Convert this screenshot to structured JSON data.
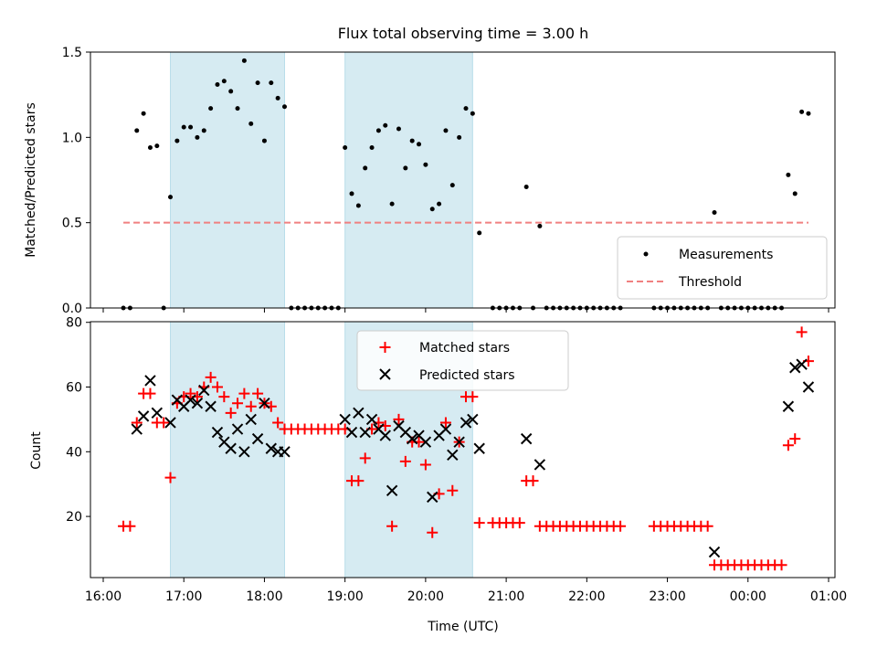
{
  "chart_data": [
    {
      "type": "scatter",
      "title": "Flux total observing time = 3.00 h",
      "xlabel": "",
      "ylabel": "Matched/Predicted stars",
      "xlim": [
        "16:00",
        "01:00"
      ],
      "ylim": [
        0,
        1.5
      ],
      "yticks": [
        "0.0",
        "0.5",
        "1.0",
        "1.5"
      ],
      "shaded_intervals": [
        [
          "16:50",
          "18:15"
        ],
        [
          "19:00",
          "20:35"
        ]
      ],
      "legend_position": "lower-right",
      "series": [
        {
          "name": "Measurements",
          "marker": "dot",
          "color": "#000000",
          "points": [
            [
              "16:15",
              0
            ],
            [
              "16:20",
              0
            ],
            [
              "16:25",
              1.04
            ],
            [
              "16:30",
              1.14
            ],
            [
              "16:35",
              0.94
            ],
            [
              "16:40",
              0.95
            ],
            [
              "16:45",
              0
            ],
            [
              "16:50",
              0.65
            ],
            [
              "16:55",
              0.98
            ],
            [
              "17:00",
              1.06
            ],
            [
              "17:05",
              1.06
            ],
            [
              "17:10",
              1.0
            ],
            [
              "17:15",
              1.04
            ],
            [
              "17:20",
              1.17
            ],
            [
              "17:25",
              1.31
            ],
            [
              "17:30",
              1.33
            ],
            [
              "17:35",
              1.27
            ],
            [
              "17:40",
              1.17
            ],
            [
              "17:45",
              1.45
            ],
            [
              "17:50",
              1.08
            ],
            [
              "17:55",
              1.32
            ],
            [
              "18:00",
              0.98
            ],
            [
              "18:05",
              1.32
            ],
            [
              "18:10",
              1.23
            ],
            [
              "18:15",
              1.18
            ],
            [
              "18:20",
              0
            ],
            [
              "18:25",
              0
            ],
            [
              "18:30",
              0
            ],
            [
              "18:35",
              0
            ],
            [
              "18:40",
              0
            ],
            [
              "18:45",
              0
            ],
            [
              "18:50",
              0
            ],
            [
              "18:55",
              0
            ],
            [
              "19:00",
              0.94
            ],
            [
              "19:05",
              0.67
            ],
            [
              "19:10",
              0.6
            ],
            [
              "19:15",
              0.82
            ],
            [
              "19:20",
              0.94
            ],
            [
              "19:25",
              1.04
            ],
            [
              "19:30",
              1.07
            ],
            [
              "19:35",
              0.61
            ],
            [
              "19:40",
              1.05
            ],
            [
              "19:45",
              0.82
            ],
            [
              "19:50",
              0.98
            ],
            [
              "19:55",
              0.96
            ],
            [
              "20:00",
              0.84
            ],
            [
              "20:05",
              0.58
            ],
            [
              "20:10",
              0.61
            ],
            [
              "20:15",
              1.04
            ],
            [
              "20:20",
              0.72
            ],
            [
              "20:25",
              1.0
            ],
            [
              "20:30",
              1.17
            ],
            [
              "20:35",
              1.14
            ],
            [
              "20:40",
              0.44
            ],
            [
              "20:50",
              0
            ],
            [
              "20:55",
              0
            ],
            [
              "21:00",
              0
            ],
            [
              "21:05",
              0
            ],
            [
              "21:10",
              0
            ],
            [
              "21:15",
              0.71
            ],
            [
              "21:20",
              0
            ],
            [
              "21:25",
              0.48
            ],
            [
              "21:30",
              0
            ],
            [
              "21:35",
              0
            ],
            [
              "21:40",
              0
            ],
            [
              "21:45",
              0
            ],
            [
              "21:50",
              0
            ],
            [
              "21:55",
              0
            ],
            [
              "22:00",
              0
            ],
            [
              "22:05",
              0
            ],
            [
              "22:10",
              0
            ],
            [
              "22:15",
              0
            ],
            [
              "22:20",
              0
            ],
            [
              "22:25",
              0
            ],
            [
              "22:50",
              0
            ],
            [
              "22:55",
              0
            ],
            [
              "23:00",
              0
            ],
            [
              "23:05",
              0
            ],
            [
              "23:10",
              0
            ],
            [
              "23:15",
              0
            ],
            [
              "23:20",
              0
            ],
            [
              "23:25",
              0
            ],
            [
              "23:30",
              0
            ],
            [
              "23:35",
              0.56
            ],
            [
              "23:40",
              0
            ],
            [
              "23:45",
              0
            ],
            [
              "23:50",
              0
            ],
            [
              "23:55",
              0
            ],
            [
              "00:00",
              0
            ],
            [
              "00:05",
              0
            ],
            [
              "00:10",
              0
            ],
            [
              "00:15",
              0
            ],
            [
              "00:20",
              0
            ],
            [
              "00:25",
              0
            ],
            [
              "00:30",
              0.78
            ],
            [
              "00:35",
              0.67
            ],
            [
              "00:40",
              1.15
            ],
            [
              "00:45",
              1.14
            ]
          ]
        },
        {
          "name": "Threshold",
          "marker": "dashed-line",
          "color": "#f08080",
          "points": [
            [
              "16:15",
              0.5
            ],
            [
              "00:45",
              0.5
            ]
          ]
        }
      ]
    },
    {
      "type": "scatter",
      "title": "",
      "xlabel": "Time (UTC)",
      "ylabel": "Count",
      "xlim": [
        "16:00",
        "01:00"
      ],
      "ylim": [
        1,
        80
      ],
      "yticks": [
        "20",
        "40",
        "60",
        "80"
      ],
      "xticks": [
        "16:00",
        "17:00",
        "18:00",
        "19:00",
        "20:00",
        "21:00",
        "22:00",
        "23:00",
        "00:00",
        "01:00"
      ],
      "shaded_intervals": [
        [
          "16:50",
          "18:15"
        ],
        [
          "19:00",
          "20:35"
        ]
      ],
      "legend_position": "upper-center",
      "series": [
        {
          "name": "Matched stars",
          "marker": "plus",
          "color": "#ff0000",
          "points": [
            [
              "16:15",
              17
            ],
            [
              "16:20",
              17
            ],
            [
              "16:25",
              49
            ],
            [
              "16:30",
              58
            ],
            [
              "16:35",
              58
            ],
            [
              "16:40",
              49
            ],
            [
              "16:45",
              49
            ],
            [
              "16:50",
              32
            ],
            [
              "16:55",
              55
            ],
            [
              "17:00",
              57
            ],
            [
              "17:05",
              58
            ],
            [
              "17:10",
              57
            ],
            [
              "17:15",
              60
            ],
            [
              "17:20",
              63
            ],
            [
              "17:25",
              60
            ],
            [
              "17:30",
              57
            ],
            [
              "17:35",
              52
            ],
            [
              "17:40",
              55
            ],
            [
              "17:45",
              58
            ],
            [
              "17:50",
              54
            ],
            [
              "17:55",
              58
            ],
            [
              "18:00",
              55
            ],
            [
              "18:05",
              54
            ],
            [
              "18:10",
              49
            ],
            [
              "18:15",
              47
            ],
            [
              "18:20",
              47
            ],
            [
              "18:25",
              47
            ],
            [
              "18:30",
              47
            ],
            [
              "18:35",
              47
            ],
            [
              "18:40",
              47
            ],
            [
              "18:45",
              47
            ],
            [
              "18:50",
              47
            ],
            [
              "18:55",
              47
            ],
            [
              "19:00",
              47
            ],
            [
              "19:05",
              31
            ],
            [
              "19:10",
              31
            ],
            [
              "19:15",
              38
            ],
            [
              "19:20",
              47
            ],
            [
              "19:25",
              49
            ],
            [
              "19:30",
              48
            ],
            [
              "19:35",
              17
            ],
            [
              "19:40",
              50
            ],
            [
              "19:45",
              37
            ],
            [
              "19:50",
              43
            ],
            [
              "19:55",
              43
            ],
            [
              "20:00",
              36
            ],
            [
              "20:05",
              15
            ],
            [
              "20:10",
              27
            ],
            [
              "20:15",
              49
            ],
            [
              "20:20",
              28
            ],
            [
              "20:25",
              43
            ],
            [
              "20:30",
              57
            ],
            [
              "20:35",
              57
            ],
            [
              "20:40",
              18
            ],
            [
              "20:50",
              18
            ],
            [
              "20:55",
              18
            ],
            [
              "21:00",
              18
            ],
            [
              "21:05",
              18
            ],
            [
              "21:10",
              18
            ],
            [
              "21:15",
              31
            ],
            [
              "21:20",
              31
            ],
            [
              "21:25",
              17
            ],
            [
              "21:30",
              17
            ],
            [
              "21:35",
              17
            ],
            [
              "21:40",
              17
            ],
            [
              "21:45",
              17
            ],
            [
              "21:50",
              17
            ],
            [
              "21:55",
              17
            ],
            [
              "22:00",
              17
            ],
            [
              "22:05",
              17
            ],
            [
              "22:10",
              17
            ],
            [
              "22:15",
              17
            ],
            [
              "22:20",
              17
            ],
            [
              "22:25",
              17
            ],
            [
              "22:50",
              17
            ],
            [
              "22:55",
              17
            ],
            [
              "23:00",
              17
            ],
            [
              "23:05",
              17
            ],
            [
              "23:10",
              17
            ],
            [
              "23:15",
              17
            ],
            [
              "23:20",
              17
            ],
            [
              "23:25",
              17
            ],
            [
              "23:30",
              17
            ],
            [
              "23:35",
              5
            ],
            [
              "23:40",
              5
            ],
            [
              "23:45",
              5
            ],
            [
              "23:50",
              5
            ],
            [
              "23:55",
              5
            ],
            [
              "00:00",
              5
            ],
            [
              "00:05",
              5
            ],
            [
              "00:10",
              5
            ],
            [
              "00:15",
              5
            ],
            [
              "00:20",
              5
            ],
            [
              "00:25",
              5
            ],
            [
              "00:30",
              42
            ],
            [
              "00:35",
              44
            ],
            [
              "00:40",
              77
            ],
            [
              "00:45",
              68
            ]
          ]
        },
        {
          "name": "Predicted stars",
          "marker": "x",
          "color": "#000000",
          "points": [
            [
              "16:25",
              47
            ],
            [
              "16:30",
              51
            ],
            [
              "16:35",
              62
            ],
            [
              "16:40",
              52
            ],
            [
              "16:50",
              49
            ],
            [
              "16:55",
              56
            ],
            [
              "17:00",
              54
            ],
            [
              "17:05",
              56
            ],
            [
              "17:10",
              55
            ],
            [
              "17:15",
              59
            ],
            [
              "17:20",
              54
            ],
            [
              "17:25",
              46
            ],
            [
              "17:30",
              43
            ],
            [
              "17:35",
              41
            ],
            [
              "17:40",
              47
            ],
            [
              "17:45",
              40
            ],
            [
              "17:50",
              50
            ],
            [
              "17:55",
              44
            ],
            [
              "18:00",
              55
            ],
            [
              "18:05",
              41
            ],
            [
              "18:10",
              40
            ],
            [
              "18:15",
              40
            ],
            [
              "19:00",
              50
            ],
            [
              "19:05",
              46
            ],
            [
              "19:10",
              52
            ],
            [
              "19:15",
              46
            ],
            [
              "19:20",
              50
            ],
            [
              "19:25",
              47
            ],
            [
              "19:30",
              45
            ],
            [
              "19:35",
              28
            ],
            [
              "19:40",
              48
            ],
            [
              "19:45",
              46
            ],
            [
              "19:50",
              44
            ],
            [
              "19:55",
              45
            ],
            [
              "20:00",
              43
            ],
            [
              "20:05",
              26
            ],
            [
              "20:10",
              45
            ],
            [
              "20:15",
              47
            ],
            [
              "20:20",
              39
            ],
            [
              "20:25",
              43
            ],
            [
              "20:30",
              49
            ],
            [
              "20:35",
              50
            ],
            [
              "20:40",
              41
            ],
            [
              "21:15",
              44
            ],
            [
              "21:25",
              36
            ],
            [
              "23:35",
              9
            ],
            [
              "00:30",
              54
            ],
            [
              "00:35",
              66
            ],
            [
              "00:40",
              67
            ],
            [
              "00:45",
              60
            ]
          ]
        }
      ]
    }
  ],
  "style": {
    "shade_color": "#add8e6",
    "measurement_color": "#000000",
    "threshold_color": "#f08080",
    "matched_color": "#ff0000",
    "predicted_color": "#000000"
  }
}
